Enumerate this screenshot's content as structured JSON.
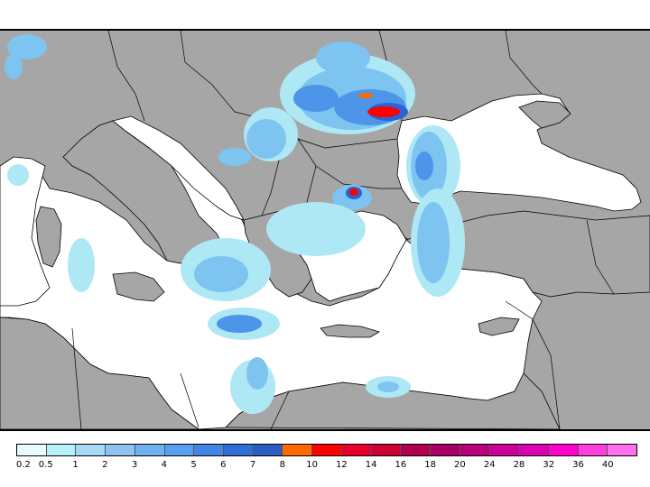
{
  "map": {
    "land_color": "#a6a6a6",
    "sea_color": "#ffffff",
    "border_color": "#000000",
    "precip_colors": {
      "light": "#aee8f5",
      "medium": "#7ec4f0",
      "strong": "#4d95e8",
      "heavy": "#2c63d6",
      "extreme": "#ff0000",
      "orange": "#ff6a00"
    }
  },
  "legend": {
    "colors": [
      "#e6fcff",
      "#b4f1f8",
      "#a7d8f5",
      "#8cc3f0",
      "#6fb0ee",
      "#5a9ef0",
      "#3f86e8",
      "#2f6ed6",
      "#2a5ec2",
      "#ff6a00",
      "#ff0000",
      "#e8002a",
      "#cc0033",
      "#b3004c",
      "#a80066",
      "#b8007d",
      "#cc0099",
      "#dd00b3",
      "#ff00cc",
      "#ff3ddf",
      "#ff6ff0"
    ],
    "labels": [
      "0.2",
      "0.5",
      "1",
      "2",
      "3",
      "4",
      "5",
      "6",
      "7",
      "8",
      "10",
      "12",
      "14",
      "16",
      "18",
      "20",
      "24",
      "28",
      "32",
      "36",
      "40"
    ]
  }
}
